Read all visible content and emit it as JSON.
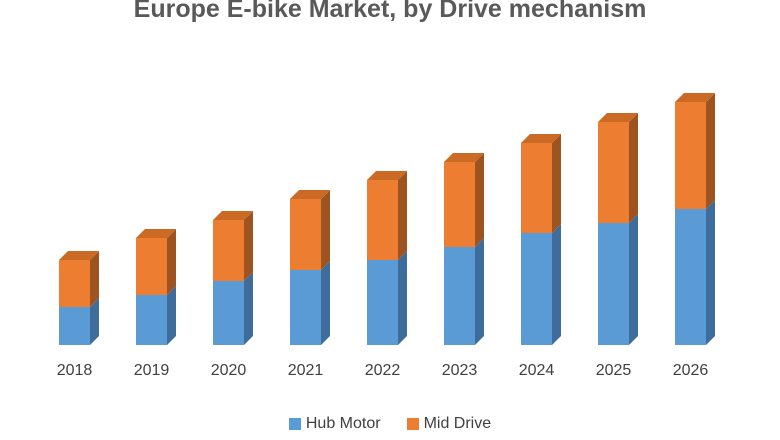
{
  "title": "Europe E-bike Market, by Drive mechanism",
  "colors": {
    "background": "#ffffff",
    "title_text": "#595959",
    "axis_text": "#404040",
    "hub_motor": {
      "front": "#5B9BD5",
      "side": "#3E6D9C",
      "top": "#4A84BE"
    },
    "mid_drive": {
      "front": "#ED7D31",
      "side": "#9E5420",
      "top": "#CB6A24"
    }
  },
  "legend": [
    {
      "label": "Hub Motor",
      "color": "#5B9BD5"
    },
    {
      "label": "Mid Drive",
      "color": "#ED7D31"
    }
  ],
  "chart_data": {
    "type": "bar",
    "stacked": true,
    "style": "3d-column",
    "title": "Europe E-bike Market, by Drive mechanism",
    "categories": [
      "2018",
      "2019",
      "2020",
      "2021",
      "2022",
      "2023",
      "2024",
      "2025",
      "2026"
    ],
    "series": [
      {
        "name": "Hub Motor",
        "color": "#5B9BD5",
        "values": [
          3.8,
          5.0,
          6.4,
          7.5,
          8.5,
          9.8,
          11.2,
          12.2,
          13.6
        ]
      },
      {
        "name": "Mid Drive",
        "color": "#ED7D31",
        "values": [
          4.7,
          5.7,
          6.1,
          7.1,
          8.0,
          8.5,
          9.0,
          10.1,
          10.7
        ]
      }
    ],
    "totals": [
      8.5,
      10.7,
      12.5,
      14.6,
      16.5,
      18.3,
      20.2,
      22.3,
      24.3
    ],
    "xlabel": "",
    "ylabel": "",
    "units": "relative index (no value axis shown on chart)",
    "ylim": [
      0,
      26
    ],
    "y_axis_visible": false,
    "x_axis_line_visible": false,
    "gridlines": false,
    "legend_position": "bottom"
  }
}
